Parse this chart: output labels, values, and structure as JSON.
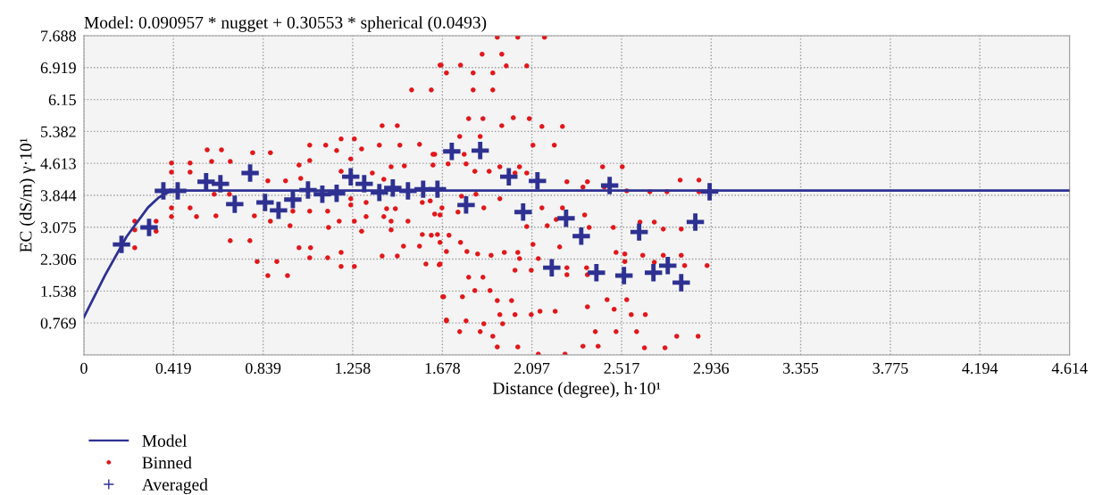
{
  "chart_data": {
    "type": "scatter",
    "title": "Model: 0.090957 * nugget + 0.30553 * spherical (0.0493)",
    "xlabel": "Distance (degree), h·10¹",
    "ylabel": "EC (dS/m) γ·10¹",
    "xlim": [
      0,
      4.614
    ],
    "ylim": [
      0,
      7.688
    ],
    "xticks": [
      0,
      0.419,
      0.839,
      1.258,
      1.678,
      2.097,
      2.517,
      2.936,
      3.355,
      3.775,
      4.194,
      4.614
    ],
    "yticks": [
      {
        "value": 0,
        "label": null
      },
      0.769,
      1.538,
      2.306,
      3.075,
      3.844,
      4.613,
      5.382,
      6.15,
      6.919,
      7.688
    ],
    "grid": true,
    "legend": "bottom left",
    "series": [
      {
        "name": "Model",
        "type": "line",
        "color": "#2e3192",
        "marker": "none",
        "line_style": "solid",
        "x": [
          0,
          0.1,
          0.2,
          0.3,
          0.35,
          0.4,
          0.44,
          4.614
        ],
        "values": [
          0.91,
          1.93,
          2.85,
          3.55,
          3.79,
          3.93,
          3.96,
          3.96
        ]
      },
      {
        "name": "Binned",
        "color": "#e3171b",
        "marker": "circle",
        "x": [
          0.238,
          0.238,
          0.238,
          0.338,
          0.338,
          0.41,
          0.497,
          0.41,
          0.497,
          0.41,
          0.497,
          0.41,
          0.527,
          0.618,
          0.577,
          0.644,
          0.598,
          0.685,
          0.61,
          0.681,
          0.685,
          0.777,
          0.79,
          0.873,
          0.811,
          0.903,
          0.861,
          0.953,
          0.861,
          0.944,
          0.798,
          0.873,
          0.978,
          1.057,
          1.132,
          1.057,
          1.007,
          1.015,
          1.057,
          1.141,
          1.007,
          1.061,
          1.057,
          1.141,
          0.965,
          1.145,
          1.204,
          1.266,
          1.183,
          1.249,
          1.204,
          1.249,
          1.249,
          1.195,
          1.266,
          1.3,
          1.204,
          1.204,
          1.266,
          1.396,
          1.467,
          1.3,
          1.383,
          1.479,
          1.571,
          1.438,
          1.5,
          1.35,
          1.404,
          1.321,
          1.417,
          1.458,
          1.321,
          1.404,
          1.438,
          1.517,
          1.438,
          1.496,
          1.571,
          1.396,
          1.467,
          1.601,
          1.667,
          1.584,
          1.655,
          1.634,
          1.634,
          1.584,
          1.642,
          1.684,
          1.697,
          1.534,
          1.626,
          1.667,
          1.697,
          1.935,
          2.031,
          2.156,
          1.864,
          1.956,
          1.672,
          1.763,
          1.977,
          2.073,
          1.822,
          1.914,
          1.822,
          1.914,
          1.801,
          1.868,
          2.01,
          2.085,
          1.956,
          2.144,
          2.24,
          1.759,
          1.855,
          2.102,
          2.202,
          1.642,
          1.78,
          1.705,
          1.789,
          1.83,
          1.897,
          1.947,
          2.039,
          2.018,
          2.073,
          2.428,
          2.52,
          2.261,
          2.357,
          2.336,
          2.436,
          2.791,
          2.879,
          2.541,
          2.649,
          2.729,
          2.879,
          1.768,
          1.835,
          1.947,
          1.621,
          1.676,
          1.872,
          1.667,
          1.751,
          2.144,
          2.24,
          2.211,
          2.344,
          2.073,
          2.169,
          2.365,
          2.478,
          2.603,
          2.67,
          2.712,
          2.796,
          1.626,
          1.709,
          1.667,
          1.763,
          2.102,
          2.227,
          1.697,
          1.793,
          1.843,
          1.906,
          1.968,
          2.031,
          2.491,
          2.532,
          2.616,
          2.712,
          2.796,
          1.663,
          2.039,
          2.127,
          2.532,
          2.67,
          2.261,
          2.353,
          2.812,
          2.917,
          2.018,
          2.094,
          2.261,
          2.357,
          1.801,
          1.868,
          1.83,
          1.901,
          1.68,
          1.772,
          2.449,
          2.541,
          1.935,
          2.002,
          2.357,
          2.482,
          1.947,
          2.018,
          2.094,
          2.135,
          2.206,
          2.562,
          2.628,
          1.697,
          1.789,
          1.872,
          1.96,
          1.759,
          1.855,
          1.914,
          2.394,
          2.491,
          2.587,
          2.775,
          2.875,
          1.935,
          2.031,
          2.336,
          2.407,
          2.624,
          2.72,
          2.127,
          2.252
        ],
        "values": [
          3.22,
          3.01,
          2.58,
          3.22,
          2.98,
          4.62,
          4.62,
          4.4,
          4.4,
          3.54,
          3.54,
          3.33,
          3.33,
          3.35,
          4.94,
          4.94,
          4.66,
          4.66,
          3.87,
          3.87,
          2.75,
          2.75,
          4.87,
          4.87,
          2.25,
          2.25,
          1.91,
          1.91,
          4.19,
          4.19,
          3.35,
          3.22,
          3.46,
          5.05,
          5.05,
          4.68,
          4.57,
          4.25,
          3.46,
          3.46,
          2.58,
          2.58,
          2.34,
          2.34,
          3.11,
          3.07,
          5.2,
          5.2,
          4.92,
          4.72,
          4.42,
          3.76,
          3.61,
          3.22,
          3.22,
          2.98,
          2.47,
          2.13,
          2.13,
          5.52,
          5.52,
          4.96,
          5.05,
          5.05,
          5.07,
          4.53,
          4.55,
          4.38,
          4.23,
          3.67,
          3.52,
          3.52,
          3.33,
          3.33,
          3.22,
          3.22,
          3.01,
          2.62,
          2.62,
          2.38,
          2.38,
          2.19,
          2.19,
          2.9,
          2.9,
          4.83,
          4.57,
          3.67,
          3.39,
          1.4,
          0.84,
          6.38,
          6.38,
          6.98,
          6.79,
          7.65,
          7.65,
          7.65,
          7.24,
          7.24,
          6.98,
          6.98,
          6.96,
          6.96,
          6.79,
          6.79,
          6.38,
          6.38,
          5.69,
          5.69,
          5.71,
          5.69,
          5.52,
          5.5,
          5.5,
          5.26,
          5.26,
          5.05,
          5.05,
          4.83,
          4.83,
          4.6,
          4.6,
          4.42,
          4.42,
          4.53,
          4.53,
          4.38,
          4.38,
          4.53,
          4.53,
          4.17,
          4.17,
          4.04,
          4.04,
          4.21,
          4.21,
          3.95,
          3.93,
          3.93,
          3.93,
          3.82,
          3.87,
          3.76,
          3.71,
          3.54,
          3.54,
          3.37,
          3.44,
          3.54,
          3.54,
          3.26,
          3.37,
          3.09,
          3.11,
          3.07,
          3.07,
          3.2,
          3.2,
          3.03,
          3.03,
          2.88,
          2.88,
          2.71,
          2.71,
          2.66,
          2.6,
          2.49,
          2.49,
          2.43,
          2.4,
          2.47,
          2.47,
          2.47,
          2.43,
          2.4,
          2.4,
          2.4,
          2.17,
          2.32,
          2.32,
          2.25,
          2.23,
          2.1,
          2.1,
          2.15,
          2.15,
          2.04,
          2.04,
          1.93,
          1.93,
          1.87,
          1.87,
          1.55,
          1.55,
          1.4,
          1.4,
          1.33,
          1.33,
          1.31,
          1.31,
          1.16,
          1.1,
          0.97,
          0.97,
          0.97,
          1.05,
          1.05,
          0.97,
          0.97,
          0.82,
          0.82,
          0.75,
          0.75,
          0.56,
          0.56,
          0.45,
          0.56,
          0.56,
          0.56,
          0.45,
          0.45,
          0.19,
          0.19,
          0.21,
          0.21,
          0.17,
          0.17,
          0.02,
          0.02
        ]
      },
      {
        "name": "Averaged",
        "color": "#2e3192",
        "marker": "cross",
        "x": [
          0.176,
          0.305,
          0.372,
          0.439,
          0.572,
          0.639,
          0.706,
          0.778,
          0.848,
          0.911,
          0.978,
          1.049,
          1.116,
          1.183,
          1.249,
          1.312,
          1.383,
          1.446,
          1.517,
          1.588,
          1.655,
          1.722,
          1.789,
          1.855,
          1.989,
          2.056,
          2.123,
          2.19,
          2.257,
          2.328,
          2.399,
          2.461,
          2.528,
          2.599,
          2.666,
          2.733,
          2.796,
          2.862,
          2.929
        ],
        "values": [
          2.66,
          3.07,
          3.95,
          3.95,
          4.17,
          4.12,
          3.63,
          4.38,
          3.67,
          3.48,
          3.74,
          3.97,
          3.87,
          3.89,
          4.29,
          4.12,
          3.91,
          4.02,
          3.95,
          3.99,
          3.99,
          4.9,
          3.61,
          4.92,
          4.29,
          3.44,
          4.19,
          2.1,
          3.29,
          2.86,
          1.98,
          4.08,
          1.91,
          2.96,
          1.98,
          2.15,
          1.74,
          3.2,
          3.93
        ]
      }
    ]
  }
}
